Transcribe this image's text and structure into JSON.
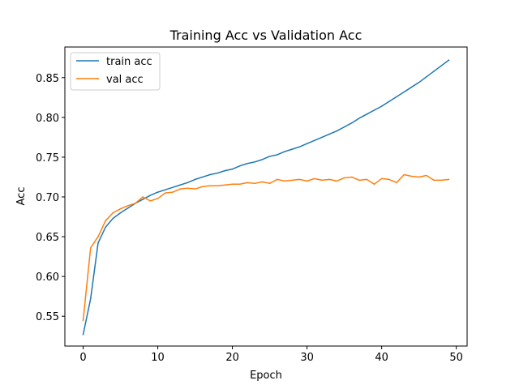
{
  "chart_data": {
    "type": "line",
    "title": "Training Acc vs Validation Acc",
    "xlabel": "Epoch",
    "ylabel": "Acc",
    "xlim": [
      -2.45,
      51.45
    ],
    "ylim": [
      0.5125,
      0.8885
    ],
    "xticks": [
      0,
      10,
      20,
      30,
      40,
      50
    ],
    "yticks": [
      0.55,
      0.6,
      0.65,
      0.7,
      0.75,
      0.8,
      0.85
    ],
    "ytick_labels": [
      "0.55",
      "0.60",
      "0.65",
      "0.70",
      "0.75",
      "0.80",
      "0.85"
    ],
    "legend": "top-left",
    "grid": false,
    "x": [
      0,
      1,
      2,
      3,
      4,
      5,
      6,
      7,
      8,
      9,
      10,
      11,
      12,
      13,
      14,
      15,
      16,
      17,
      18,
      19,
      20,
      21,
      22,
      23,
      24,
      25,
      26,
      27,
      28,
      29,
      30,
      31,
      32,
      33,
      34,
      35,
      36,
      37,
      38,
      39,
      40,
      41,
      42,
      43,
      44,
      45,
      46,
      47,
      48,
      49
    ],
    "series": [
      {
        "name": "train acc",
        "color": "#1f77b4",
        "values": [
          0.527,
          0.572,
          0.642,
          0.662,
          0.673,
          0.68,
          0.686,
          0.692,
          0.697,
          0.702,
          0.706,
          0.709,
          0.712,
          0.715,
          0.718,
          0.722,
          0.725,
          0.728,
          0.73,
          0.733,
          0.735,
          0.739,
          0.742,
          0.744,
          0.747,
          0.751,
          0.753,
          0.757,
          0.76,
          0.763,
          0.767,
          0.771,
          0.775,
          0.779,
          0.783,
          0.788,
          0.793,
          0.799,
          0.804,
          0.809,
          0.814,
          0.82,
          0.826,
          0.832,
          0.838,
          0.844,
          0.851,
          0.858,
          0.865,
          0.872
        ]
      },
      {
        "name": "val acc",
        "color": "#ff7f0e",
        "values": [
          0.545,
          0.636,
          0.65,
          0.67,
          0.68,
          0.685,
          0.689,
          0.692,
          0.7,
          0.695,
          0.698,
          0.705,
          0.706,
          0.71,
          0.711,
          0.71,
          0.713,
          0.714,
          0.714,
          0.715,
          0.716,
          0.716,
          0.718,
          0.717,
          0.719,
          0.717,
          0.722,
          0.72,
          0.721,
          0.722,
          0.72,
          0.723,
          0.721,
          0.722,
          0.72,
          0.724,
          0.725,
          0.721,
          0.722,
          0.716,
          0.723,
          0.722,
          0.718,
          0.728,
          0.726,
          0.725,
          0.727,
          0.721,
          0.721,
          0.722
        ]
      }
    ]
  }
}
